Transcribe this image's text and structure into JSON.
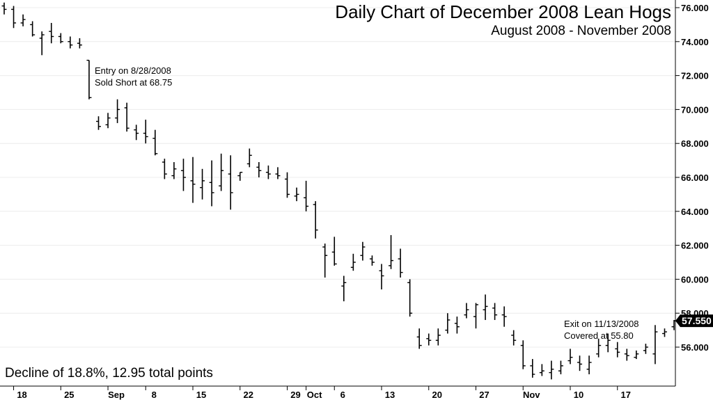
{
  "chart_data": {
    "type": "ohlc",
    "title": "Daily Chart of December 2008 Lean Hogs",
    "subtitle": "August 2008 - November 2008",
    "ylim": [
      54,
      76.5
    ],
    "y_ticks": [
      "56.000",
      "58.000",
      "60.000",
      "62.000",
      "64.000",
      "66.000",
      "68.000",
      "70.000",
      "72.000",
      "74.000",
      "76.000"
    ],
    "x_ticks": [
      "18",
      "25",
      "Sep",
      "8",
      "15",
      "22",
      "29",
      "Oct",
      "6",
      "13",
      "20",
      "27",
      "Nov",
      "10",
      "17"
    ],
    "last_price": "57.550",
    "annotations": {
      "entry": [
        "Entry on 8/28/2008",
        "Sold Short at 68.75"
      ],
      "exit": [
        "Exit on 11/13/2008",
        "Covered at 55.80"
      ],
      "summary": "Decline of 18.8%, 12.95 total points"
    },
    "bars": [
      {
        "h": 76.3,
        "l": 75.6,
        "o": 76.1,
        "c": 75.9
      },
      {
        "h": 76.1,
        "l": 74.8,
        "o": 75.9,
        "c": 75.1
      },
      {
        "h": 75.6,
        "l": 74.9,
        "o": 75.1,
        "c": 75.3
      },
      {
        "h": 75.2,
        "l": 74.3,
        "o": 75.0,
        "c": 74.4
      },
      {
        "h": 74.6,
        "l": 73.2,
        "o": 74.2,
        "c": 74.4
      },
      {
        "h": 75.1,
        "l": 73.9,
        "o": 74.6,
        "c": 74.3
      },
      {
        "h": 74.5,
        "l": 73.9,
        "o": 74.3,
        "c": 74.0
      },
      {
        "h": 74.3,
        "l": 73.6,
        "o": 74.0,
        "c": 73.8
      },
      {
        "h": 74.2,
        "l": 73.6,
        "o": 73.9,
        "c": 73.8
      },
      {
        "h": 72.9,
        "l": 70.6,
        "o": 72.9,
        "c": 70.7
      },
      {
        "h": 69.6,
        "l": 68.8,
        "o": 69.3,
        "c": 69.0
      },
      {
        "h": 69.8,
        "l": 68.9,
        "o": 69.1,
        "c": 69.5
      },
      {
        "h": 70.6,
        "l": 69.2,
        "o": 69.5,
        "c": 70.0
      },
      {
        "h": 70.4,
        "l": 68.7,
        "o": 70.1,
        "c": 68.9
      },
      {
        "h": 69.1,
        "l": 68.2,
        "o": 68.8,
        "c": 68.6
      },
      {
        "h": 69.4,
        "l": 68.0,
        "o": 68.6,
        "c": 68.4
      },
      {
        "h": 68.8,
        "l": 67.3,
        "o": 68.3,
        "c": 67.4
      },
      {
        "h": 67.1,
        "l": 65.9,
        "o": 66.9,
        "c": 66.2
      },
      {
        "h": 66.9,
        "l": 65.9,
        "o": 66.1,
        "c": 66.5
      },
      {
        "h": 67.1,
        "l": 65.2,
        "o": 66.4,
        "c": 66.0
      },
      {
        "h": 67.2,
        "l": 64.5,
        "o": 65.8,
        "c": 65.6
      },
      {
        "h": 66.5,
        "l": 64.7,
        "o": 65.4,
        "c": 65.8
      },
      {
        "h": 67.0,
        "l": 64.3,
        "o": 65.7,
        "c": 65.1
      },
      {
        "h": 67.4,
        "l": 65.2,
        "o": 65.5,
        "c": 66.4
      },
      {
        "h": 67.3,
        "l": 64.1,
        "o": 66.2,
        "c": 65.1
      },
      {
        "h": 66.3,
        "l": 65.8,
        "o": 66.1,
        "c": 66.3
      },
      {
        "h": 67.7,
        "l": 66.6,
        "o": 66.8,
        "c": 67.3
      },
      {
        "h": 66.9,
        "l": 66.0,
        "o": 66.6,
        "c": 66.4
      },
      {
        "h": 66.7,
        "l": 65.9,
        "o": 66.3,
        "c": 66.2
      },
      {
        "h": 66.6,
        "l": 65.9,
        "o": 66.2,
        "c": 66.1
      },
      {
        "h": 66.3,
        "l": 64.8,
        "o": 65.9,
        "c": 65.0
      },
      {
        "h": 65.4,
        "l": 64.6,
        "o": 64.9,
        "c": 65.0
      },
      {
        "h": 65.8,
        "l": 64.0,
        "o": 64.8,
        "c": 64.3
      },
      {
        "h": 64.6,
        "l": 62.4,
        "o": 64.4,
        "c": 62.9
      },
      {
        "h": 62.1,
        "l": 60.1,
        "o": 61.9,
        "c": 61.4
      },
      {
        "h": 62.5,
        "l": 60.8,
        "o": 61.6,
        "c": 60.9
      },
      {
        "h": 60.2,
        "l": 58.7,
        "o": 59.6,
        "c": 59.8
      },
      {
        "h": 61.5,
        "l": 60.5,
        "o": 60.7,
        "c": 61.0
      },
      {
        "h": 62.2,
        "l": 61.1,
        "o": 61.4,
        "c": 61.9
      },
      {
        "h": 61.4,
        "l": 60.8,
        "o": 61.2,
        "c": 61.0
      },
      {
        "h": 60.9,
        "l": 59.4,
        "o": 60.5,
        "c": 60.2
      },
      {
        "h": 62.6,
        "l": 60.6,
        "o": 60.8,
        "c": 61.1
      },
      {
        "h": 61.8,
        "l": 60.1,
        "o": 61.2,
        "c": 60.4
      },
      {
        "h": 60.0,
        "l": 57.8,
        "o": 59.8,
        "c": 58.0
      },
      {
        "h": 57.1,
        "l": 55.9,
        "o": 56.6,
        "c": 56.1
      },
      {
        "h": 56.8,
        "l": 56.1,
        "o": 56.5,
        "c": 56.4
      },
      {
        "h": 57.1,
        "l": 56.1,
        "o": 56.4,
        "c": 56.7
      },
      {
        "h": 58.0,
        "l": 56.8,
        "o": 57.0,
        "c": 57.6
      },
      {
        "h": 57.8,
        "l": 56.8,
        "o": 57.4,
        "c": 57.2
      },
      {
        "h": 58.6,
        "l": 57.7,
        "o": 57.9,
        "c": 58.2
      },
      {
        "h": 58.6,
        "l": 57.1,
        "o": 57.8,
        "c": 58.5
      },
      {
        "h": 59.1,
        "l": 57.6,
        "o": 58.2,
        "c": 58.4
      },
      {
        "h": 58.6,
        "l": 57.6,
        "o": 58.3,
        "c": 57.9
      },
      {
        "h": 58.4,
        "l": 57.2,
        "o": 57.9,
        "c": 57.8
      },
      {
        "h": 57.0,
        "l": 56.1,
        "o": 56.7,
        "c": 56.4
      },
      {
        "h": 56.4,
        "l": 54.7,
        "o": 56.1,
        "c": 54.9
      },
      {
        "h": 55.3,
        "l": 54.2,
        "o": 54.9,
        "c": 54.4
      },
      {
        "h": 55.0,
        "l": 54.3,
        "o": 54.5,
        "c": 54.6
      },
      {
        "h": 55.2,
        "l": 54.1,
        "o": 54.5,
        "c": 54.7
      },
      {
        "h": 55.2,
        "l": 54.4,
        "o": 54.6,
        "c": 54.9
      },
      {
        "h": 55.9,
        "l": 55.0,
        "o": 55.2,
        "c": 55.4
      },
      {
        "h": 55.5,
        "l": 54.6,
        "o": 55.1,
        "c": 55.0
      },
      {
        "h": 55.5,
        "l": 54.4,
        "o": 54.7,
        "c": 55.1
      },
      {
        "h": 56.5,
        "l": 55.4,
        "o": 55.6,
        "c": 56.1
      },
      {
        "h": 56.8,
        "l": 55.7,
        "o": 56.1,
        "c": 56.4
      },
      {
        "h": 56.3,
        "l": 55.4,
        "o": 55.9,
        "c": 55.7
      },
      {
        "h": 55.9,
        "l": 55.2,
        "o": 55.6,
        "c": 55.5
      },
      {
        "h": 55.8,
        "l": 55.3,
        "o": 55.4,
        "c": 55.6
      },
      {
        "h": 56.2,
        "l": 55.6,
        "o": 55.8,
        "c": 56.0
      },
      {
        "h": 57.3,
        "l": 55.0,
        "o": 55.6,
        "c": 56.9
      },
      {
        "h": 57.1,
        "l": 56.6,
        "o": 56.8,
        "c": 56.9
      },
      {
        "h": 57.6,
        "l": 57.0,
        "o": 57.2,
        "c": 57.55
      }
    ]
  }
}
